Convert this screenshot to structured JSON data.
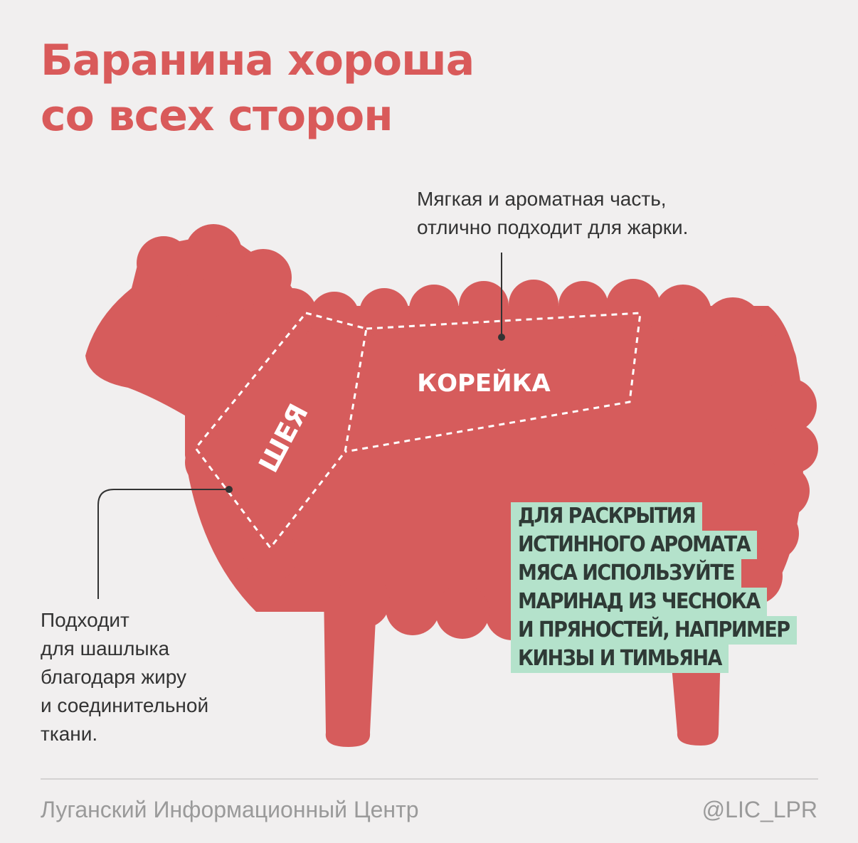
{
  "title": {
    "lines": [
      "Баранина хороша",
      "со всех сторон"
    ]
  },
  "cuts": {
    "loin": "КОРЕЙКА",
    "neck": "ШЕЯ"
  },
  "annotations": {
    "loin": {
      "lines": [
        "Мягкая и ароматная часть,",
        "отлично подходит для жарки."
      ]
    },
    "neck": {
      "lines": [
        "Подходит",
        "для шашлыка",
        "благодаря жиру",
        "и соединительной",
        "ткани."
      ]
    }
  },
  "tip": {
    "lines": [
      "ДЛЯ РАСКРЫТИЯ",
      "ИСТИННОГО АРОМАТА",
      "МЯСА ИСПОЛЬЗУЙТЕ",
      "МАРИНАД ИЗ ЧЕСНОКА",
      "И ПРЯНОСТЕЙ, НАПРИМЕР",
      "КИНЗЫ И ТИМЬЯНА"
    ]
  },
  "footer": {
    "source": "Луганский Информационный Центр",
    "handle": "@LIC_LPR"
  }
}
